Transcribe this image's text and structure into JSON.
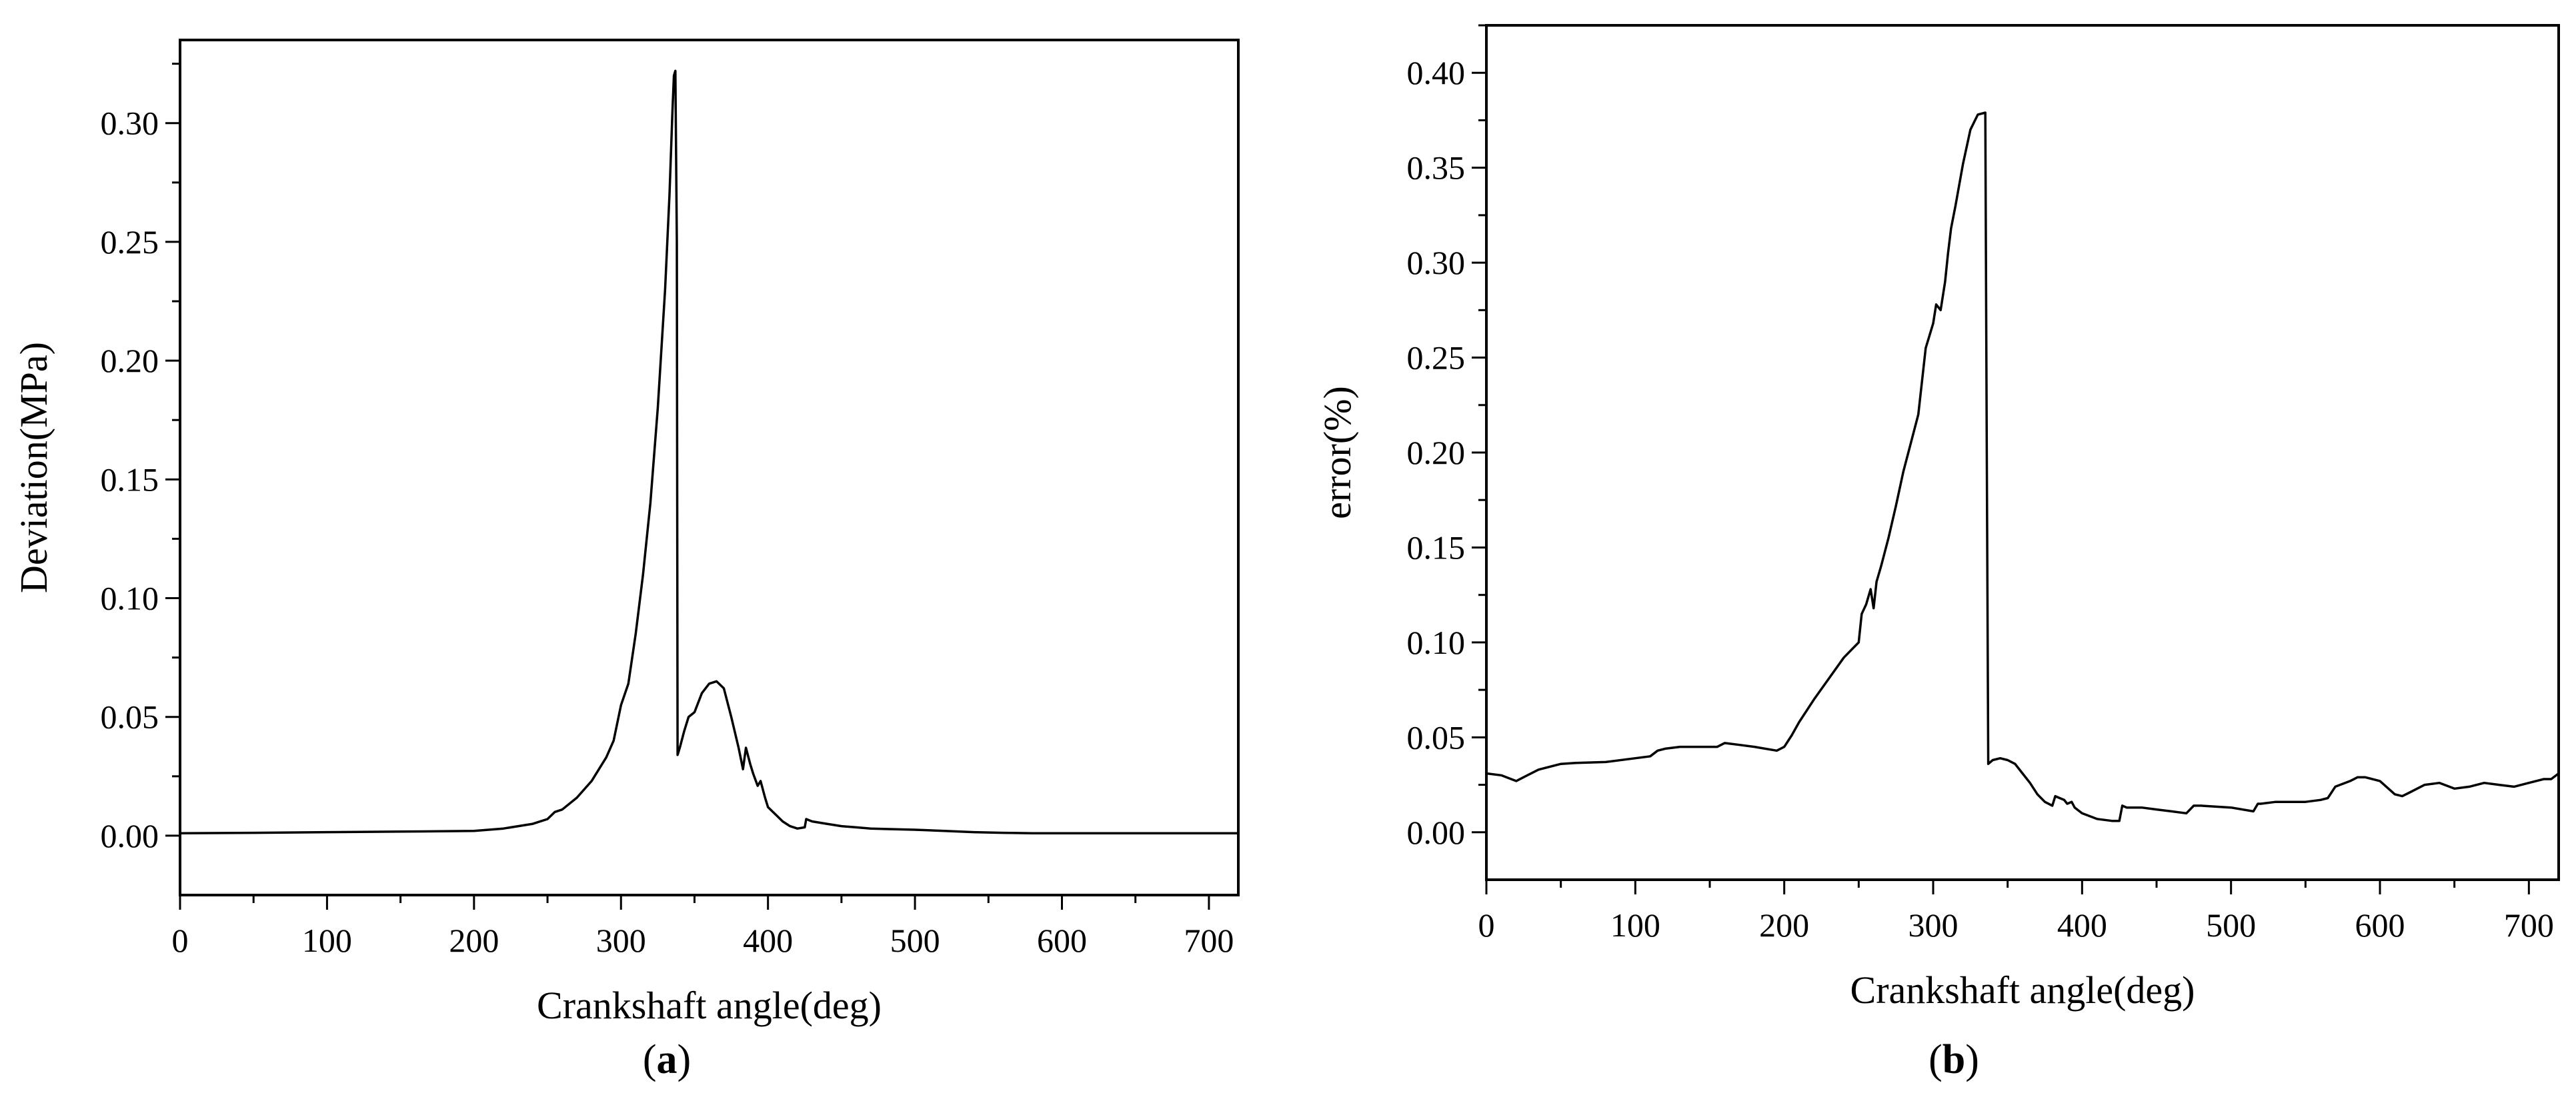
{
  "chart_data": [
    {
      "type": "line",
      "panel_label": "(a)",
      "panel_letter": "a",
      "xlabel": "Crankshaft angle(deg)",
      "ylabel": "Deviation(MPa)",
      "xlim": [
        0,
        720
      ],
      "ylim": [
        -0.025,
        0.335
      ],
      "xticks": [
        0,
        100,
        200,
        300,
        400,
        500,
        600,
        700
      ],
      "yticks": [
        0.0,
        0.05,
        0.1,
        0.15,
        0.2,
        0.25,
        0.3
      ],
      "ytick_labels": [
        "0.00",
        "0.05",
        "0.10",
        "0.15",
        "0.20",
        "0.25",
        "0.30"
      ],
      "grid": false,
      "legend": "none",
      "series": [
        {
          "color": "#000000",
          "x": [
            0,
            50,
            100,
            150,
            200,
            220,
            240,
            250,
            255,
            260,
            270,
            280,
            290,
            295,
            300,
            305,
            310,
            315,
            320,
            325,
            330,
            333,
            335,
            336,
            337,
            338,
            338.5,
            340,
            343,
            346,
            350,
            355,
            360,
            365,
            370,
            375,
            380,
            383,
            385,
            388,
            390,
            393,
            395,
            398,
            400,
            405,
            410,
            415,
            420,
            425,
            426,
            430,
            440,
            450,
            460,
            470,
            480,
            500,
            520,
            540,
            560,
            580,
            600,
            650,
            700,
            720
          ],
          "y": [
            0.001,
            0.0012,
            0.0015,
            0.0017,
            0.002,
            0.003,
            0.005,
            0.007,
            0.01,
            0.011,
            0.016,
            0.023,
            0.033,
            0.04,
            0.055,
            0.064,
            0.085,
            0.11,
            0.14,
            0.18,
            0.23,
            0.27,
            0.305,
            0.32,
            0.322,
            0.25,
            0.034,
            0.037,
            0.044,
            0.05,
            0.052,
            0.06,
            0.064,
            0.065,
            0.062,
            0.05,
            0.037,
            0.028,
            0.037,
            0.03,
            0.026,
            0.021,
            0.023,
            0.016,
            0.012,
            0.009,
            0.006,
            0.004,
            0.003,
            0.0035,
            0.007,
            0.006,
            0.005,
            0.004,
            0.0035,
            0.003,
            0.0028,
            0.0025,
            0.002,
            0.0015,
            0.0012,
            0.001,
            0.001,
            0.001,
            0.001,
            0.001
          ]
        }
      ]
    },
    {
      "type": "line",
      "panel_label": "(b)",
      "panel_letter": "b",
      "xlabel": "Crankshaft angle(deg)",
      "ylabel": "error(%)",
      "xlim": [
        0,
        720
      ],
      "ylim": [
        -0.025,
        0.425
      ],
      "xticks": [
        0,
        100,
        200,
        300,
        400,
        500,
        600,
        700
      ],
      "yticks": [
        0.0,
        0.05,
        0.1,
        0.15,
        0.2,
        0.25,
        0.3,
        0.35,
        0.4
      ],
      "ytick_labels": [
        "0.00",
        "0.05",
        "0.10",
        "0.15",
        "0.20",
        "0.25",
        "0.30",
        "0.35",
        "0.40"
      ],
      "grid": false,
      "legend": "none",
      "series": [
        {
          "color": "#000000",
          "x": [
            0,
            10,
            20,
            25,
            35,
            50,
            60,
            80,
            100,
            110,
            115,
            120,
            130,
            140,
            155,
            160,
            170,
            180,
            195,
            200,
            205,
            210,
            220,
            230,
            240,
            250,
            252,
            255,
            258,
            260,
            262,
            265,
            270,
            275,
            280,
            285,
            290,
            295,
            300,
            302,
            305,
            308,
            310,
            312,
            315,
            320,
            325,
            330,
            335,
            336,
            337,
            340,
            345,
            350,
            355,
            360,
            365,
            370,
            375,
            380,
            382,
            385,
            388,
            390,
            393,
            395,
            400,
            410,
            420,
            425,
            427,
            430,
            440,
            450,
            460,
            470,
            475,
            480,
            500,
            515,
            518,
            520,
            530,
            540,
            550,
            560,
            565,
            570,
            580,
            585,
            590,
            600,
            610,
            615,
            620,
            630,
            640,
            650,
            660,
            670,
            680,
            690,
            700,
            710,
            715,
            720
          ],
          "y": [
            0.031,
            0.03,
            0.027,
            0.029,
            0.033,
            0.036,
            0.0365,
            0.037,
            0.039,
            0.04,
            0.043,
            0.044,
            0.045,
            0.045,
            0.045,
            0.047,
            0.046,
            0.045,
            0.043,
            0.045,
            0.051,
            0.058,
            0.07,
            0.081,
            0.092,
            0.1,
            0.115,
            0.12,
            0.128,
            0.118,
            0.132,
            0.14,
            0.155,
            0.172,
            0.19,
            0.205,
            0.22,
            0.255,
            0.268,
            0.278,
            0.275,
            0.29,
            0.305,
            0.318,
            0.33,
            0.352,
            0.37,
            0.378,
            0.379,
            0.2,
            0.036,
            0.038,
            0.039,
            0.038,
            0.036,
            0.031,
            0.026,
            0.02,
            0.016,
            0.014,
            0.019,
            0.018,
            0.017,
            0.015,
            0.016,
            0.013,
            0.01,
            0.007,
            0.006,
            0.006,
            0.014,
            0.013,
            0.013,
            0.012,
            0.011,
            0.01,
            0.014,
            0.014,
            0.013,
            0.011,
            0.015,
            0.015,
            0.016,
            0.016,
            0.016,
            0.017,
            0.018,
            0.024,
            0.027,
            0.029,
            0.029,
            0.027,
            0.02,
            0.019,
            0.021,
            0.025,
            0.026,
            0.023,
            0.024,
            0.026,
            0.025,
            0.024,
            0.026,
            0.028,
            0.028,
            0.031
          ]
        }
      ]
    }
  ]
}
